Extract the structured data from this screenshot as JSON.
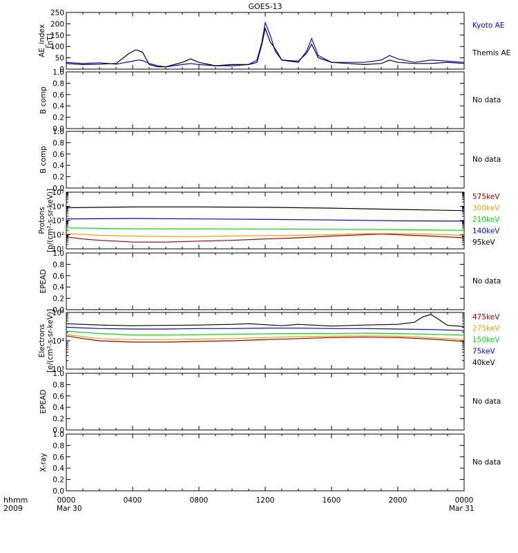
{
  "title": "GOES-13",
  "footer": {
    "hhmm_label": "hhmm",
    "year_label": "2009"
  },
  "x_axis": {
    "ticks": [
      "0000",
      "0400",
      "0800",
      "1200",
      "1600",
      "2000",
      "0000"
    ],
    "start_date": "Mar 30",
    "end_date": "Mar 31",
    "range_hours": [
      0,
      24
    ]
  },
  "colors": {
    "black": "#000000",
    "blue": "#0000ff",
    "green": "#00e000",
    "orange": "#f0a000",
    "darkred": "#a00000"
  },
  "chart_data": [
    {
      "type": "line",
      "ylabel": "AE_index\n[nT]",
      "ylim": [
        0,
        250
      ],
      "yticks": [
        "0",
        "50",
        "100",
        "150",
        "200",
        "250"
      ],
      "legend_placement": "right",
      "series": [
        {
          "name": "Kyoto AE",
          "color": "#0000ff",
          "x": [
            0,
            1,
            2,
            3,
            4,
            4.3,
            4.6,
            5,
            5.5,
            6,
            7,
            7.5,
            8,
            9,
            10,
            11,
            11.5,
            11.8,
            12,
            12.3,
            12.6,
            13,
            14,
            14.5,
            14.8,
            15.2,
            16,
            17,
            18,
            19,
            19.5,
            20,
            21,
            22,
            23,
            24
          ],
          "values": [
            30,
            25,
            28,
            22,
            35,
            40,
            38,
            25,
            15,
            10,
            20,
            25,
            20,
            15,
            15,
            20,
            40,
            120,
            205,
            150,
            80,
            40,
            30,
            80,
            135,
            60,
            30,
            30,
            30,
            40,
            60,
            45,
            30,
            40,
            35,
            30
          ]
        },
        {
          "name": "Themis AE",
          "color": "#000000",
          "x": [
            0,
            1,
            2,
            3,
            3.8,
            4.2,
            4.6,
            5,
            5.5,
            6,
            7,
            7.5,
            8,
            9,
            10,
            11,
            11.5,
            11.8,
            12,
            12.3,
            12.6,
            13,
            14,
            14.5,
            14.8,
            15.2,
            16,
            17,
            18,
            19,
            19.5,
            20,
            21,
            22,
            23,
            24
          ],
          "values": [
            25,
            20,
            22,
            25,
            70,
            85,
            75,
            20,
            10,
            10,
            30,
            45,
            30,
            15,
            20,
            20,
            30,
            110,
            180,
            120,
            90,
            40,
            35,
            70,
            110,
            50,
            30,
            25,
            20,
            25,
            40,
            30,
            25,
            25,
            30,
            25
          ]
        }
      ]
    },
    {
      "type": "line",
      "ylabel": "B comp",
      "ylim": [
        0,
        1
      ],
      "yticks": [
        "0.0",
        "0.2",
        "0.4",
        "0.6",
        "0.8",
        "1.0"
      ],
      "note": "No data",
      "series": []
    },
    {
      "type": "line",
      "ylabel": "B comp",
      "ylim": [
        0,
        1
      ],
      "yticks": [
        "0.0",
        "0.2",
        "0.4",
        "0.6",
        "0.8",
        "1.0"
      ],
      "note": "No data",
      "series": []
    },
    {
      "type": "line",
      "ylabel": "Protons\n[p/(cm²-s-sr-keV)]",
      "yscale": "log",
      "ylim": [
        10,
        100000
      ],
      "yticks": [
        "10¹",
        "10²",
        "10³",
        "10⁴",
        "10⁵"
      ],
      "legend_placement": "right",
      "series": [
        {
          "name": "575keV",
          "color": "#a00000",
          "x": [
            0,
            1,
            2,
            3,
            4,
            6,
            8,
            10,
            12,
            14,
            16,
            18,
            19,
            20,
            22,
            24
          ],
          "values": [
            70,
            50,
            40,
            35,
            30,
            30,
            35,
            40,
            50,
            60,
            80,
            100,
            110,
            100,
            80,
            60
          ]
        },
        {
          "name": "300keV",
          "color": "#f0a000",
          "x": [
            0,
            2,
            4,
            6,
            8,
            10,
            12,
            14,
            16,
            18,
            20,
            22,
            24
          ],
          "values": [
            120,
            90,
            80,
            75,
            75,
            80,
            85,
            90,
            100,
            120,
            120,
            110,
            90
          ]
        },
        {
          "name": "210keV",
          "color": "#00e000",
          "x": [
            0,
            4,
            8,
            12,
            16,
            20,
            24
          ],
          "values": [
            300,
            260,
            260,
            250,
            240,
            230,
            200
          ]
        },
        {
          "name": "140keV",
          "color": "#0000ff",
          "x": [
            0,
            4,
            8,
            12,
            16,
            20,
            24
          ],
          "values": [
            1300,
            1400,
            1300,
            1200,
            1100,
            950,
            900
          ]
        },
        {
          "name": "95keV",
          "color": "#000000",
          "x": [
            0,
            4,
            8,
            12,
            16,
            20,
            24
          ],
          "values": [
            8000,
            9000,
            9000,
            8500,
            7500,
            6000,
            5000
          ]
        }
      ]
    },
    {
      "type": "line",
      "ylabel": "EPEAD",
      "ylim": [
        0,
        1
      ],
      "yticks": [
        "0.0",
        "0.2",
        "0.4",
        "0.6",
        "0.8",
        "1.0"
      ],
      "note": "No data",
      "series": []
    },
    {
      "type": "line",
      "ylabel": "Electrons\n[e/(cm²-s-sr-keV)]",
      "yscale": "log",
      "ylim": [
        1000,
        100000
      ],
      "yticks": [
        "10³",
        "10⁴",
        "10⁵"
      ],
      "legend_placement": "right",
      "series": [
        {
          "name": "475keV",
          "color": "#a00000",
          "x": [
            0,
            1,
            2,
            4,
            6,
            8,
            10,
            12,
            14,
            16,
            18,
            20,
            22,
            24
          ],
          "values": [
            15000,
            12000,
            10000,
            9000,
            9000,
            9500,
            10000,
            11000,
            12000,
            13000,
            13500,
            13000,
            11500,
            9500
          ]
        },
        {
          "name": "275keV",
          "color": "#f0a000",
          "x": [
            0,
            1,
            2,
            4,
            6,
            8,
            10,
            12,
            14,
            16,
            18,
            20,
            22,
            24
          ],
          "values": [
            17000,
            14000,
            12000,
            11000,
            11000,
            11500,
            12000,
            13000,
            14000,
            14500,
            15000,
            14500,
            13000,
            11000
          ]
        },
        {
          "name": "150keV",
          "color": "#00e000",
          "x": [
            0,
            2,
            4,
            6,
            8,
            10,
            12,
            14,
            16,
            18,
            20,
            22,
            24
          ],
          "values": [
            22000,
            18000,
            16000,
            16000,
            16500,
            17000,
            17500,
            18000,
            18000,
            18500,
            18000,
            17000,
            16000
          ]
        },
        {
          "name": "75keV",
          "color": "#0000ff",
          "x": [
            0,
            2,
            4,
            6,
            8,
            10,
            12,
            14,
            16,
            18,
            20,
            22,
            24
          ],
          "values": [
            30000,
            27000,
            26000,
            26000,
            27000,
            27000,
            28000,
            28000,
            27000,
            27000,
            26000,
            25000,
            23000
          ]
        },
        {
          "name": "40keV",
          "color": "#000000",
          "x": [
            0,
            2,
            4,
            6,
            8,
            10,
            11,
            12,
            13,
            14,
            16,
            18,
            20,
            21,
            21.5,
            22,
            22.5,
            23,
            24
          ],
          "values": [
            40000,
            36000,
            34000,
            35000,
            36000,
            38000,
            40000,
            37000,
            34000,
            38000,
            33000,
            36000,
            38000,
            45000,
            70000,
            85000,
            55000,
            35000,
            32000
          ]
        }
      ]
    },
    {
      "type": "line",
      "ylabel": "EPEAD",
      "ylim": [
        0,
        1
      ],
      "yticks": [
        "0.0",
        "0.2",
        "0.4",
        "0.6",
        "0.8",
        "1.0"
      ],
      "note": "No data",
      "series": []
    },
    {
      "type": "line",
      "ylabel": "X-ray",
      "ylim": [
        0,
        1
      ],
      "yticks": [
        "0.0",
        "0.2",
        "0.4",
        "0.6",
        "0.8",
        "1.0"
      ],
      "note": "No data",
      "series": []
    }
  ]
}
